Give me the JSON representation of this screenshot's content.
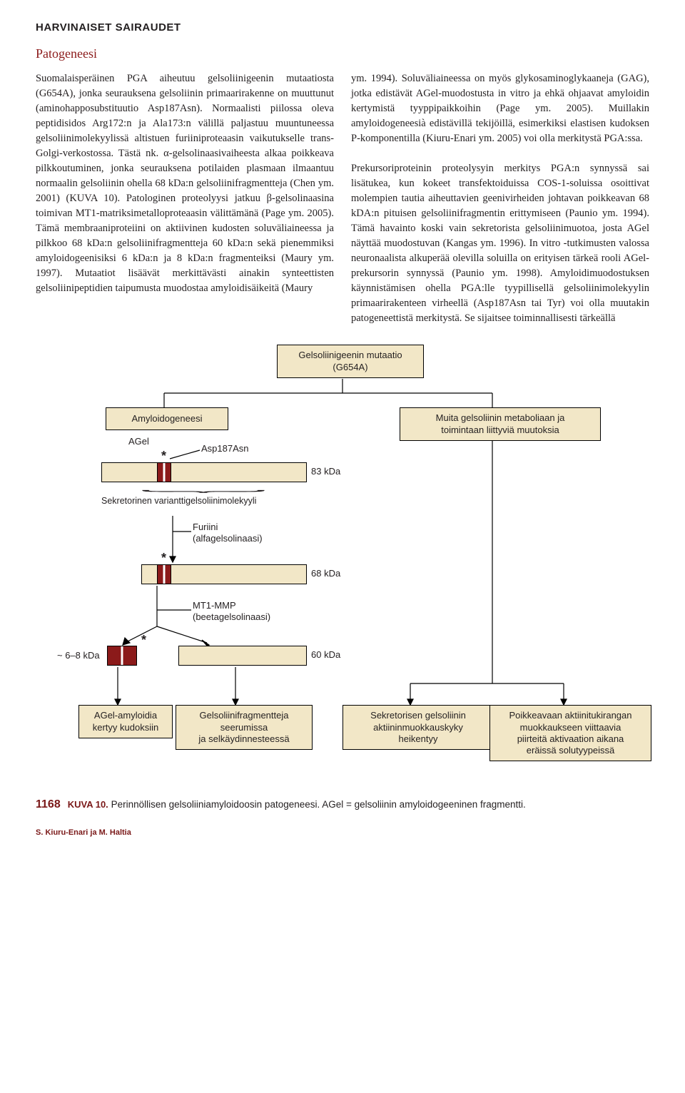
{
  "header": {
    "section": "HARVINAISET SAIRAUDET"
  },
  "subheading": "Patogeneesi",
  "paragraphs": {
    "left": "Suomalaisperäinen PGA aiheutuu gelsoliinigeenin mutaatiosta (G654A), jonka seurauksena gelsoliinin primaarirakenne on muuttunut (aminohapposubstituutio Asp187Asn). Normaalisti piilossa oleva peptidisidos Arg172:n ja Ala173:n välillä paljastuu muuntuneessa gelsoliinimolekyylissä altistuen furiiniproteaasin vaikutukselle trans-Golgi-verkostossa. Tästä nk. α-gelsolinaasivaiheesta alkaa poikkeava pilkkoutuminen, jonka seurauksena potilaiden plasmaan ilmaantuu normaalin gelsoliinin ohella 68 kDa:n gelsoliinifragmentteja (Chen ym. 2001) (KUVA 10). Patologinen proteolyysi jatkuu β-gelsolinaasina toimivan MT1-matriksimetalloproteaasin välittämänä (Page ym. 2005). Tämä membraaniproteiini on aktiivinen kudosten soluväliaineessa ja pilkkoo 68 kDa:n gelsoliinifragmentteja 60 kDa:n sekä pienemmiksi amyloidogeenisiksi 6 kDa:n ja 8 kDa:n fragmenteiksi (Maury ym. 1997). Mutaatiot lisäävät merkittävästi ainakin synteettisten gelsoliinipeptidien taipumusta muodostaa amyloidisäikeitä (Maury",
    "right": "ym. 1994). Soluväliaineessa on myös glykosaminoglykaaneja (GAG), jotka edistävät AGel-muodostusta in vitro ja ehkä ohjaavat amyloidin kertymistä tyyppipaikkoihin (Page ym. 2005). Muillakin amyloidogeneesià edistävillä tekijöillä, esimerkiksi elastisen kudoksen P-komponentilla (Kiuru-Enari ym. 2005) voi olla merkitystä PGA:ssa.\n\nPrekursoriproteinin proteolysyin merkitys PGA:n synnyssä sai lisätukea, kun kokeet transfektoiduissa COS-1-soluissa osoittivat molempien tautia aiheuttavien geenivirheiden johtavan poikkeavan 68 kDA:n pituisen gelsoliinifragmentin erittymiseen (Paunio ym. 1994). Tämä havainto koski vain sekretorista gelsoliinimuotoa, josta AGel näyttää muodostuvan (Kangas ym. 1996). In vitro -tutkimusten valossa neuronaalista alkuperää olevilla soluilla on erityisen tärkeä rooli AGel-prekursorin synnyssä (Paunio ym. 1998). Amyloidimuodostuksen käynnistämisen ohella PGA:lle tyypillisellä gelsoliinimolekyylin primaarirakenteen virheellä (Asp187Asn tai Tyr) voi olla muutakin patogeneettistä merkitystä. Se sijaitsee toiminnallisesti tärkeällä"
  },
  "figure": {
    "top_box": "Gelsoliinigeenin mutaatio\n(G654A)",
    "amyloidogenesis_box": "Amyloidogeneesi",
    "other_changes_box": "Muita gelsoliinin metaboliaan ja\ntoimintaan liittyviä muutoksia",
    "agel_label": "AGel",
    "mutation_label": "Asp187Asn",
    "secretory_label": "Sekretorinen varianttigelsoliinimolekyyli",
    "furin_label": "Furiini\n(alfagelsolinaasi)",
    "mt1_label": "MT1-MMP\n(beetagelsolinaasi)",
    "frag_small": "~ 6–8 kDa",
    "size_83": "83 kDa",
    "size_68": "68 kDa",
    "size_60": "60 kDa",
    "bottom_box_1": "AGel-amyloidia\nkertyy kudoksiin",
    "bottom_box_2": "Gelsoliinifragmentteja\nseerumissa\nja selkäydinnesteessä",
    "bottom_box_3": "Sekretorisen gelsoliinin\naktiininmuokkauskyky\nheikentyy",
    "bottom_box_4": "Poikkeavaan aktiinitukirangan\nmuokkaukseen viittaavia\npiirteitä aktivaation aikana\neräissä solutyypeissä",
    "colors": {
      "light_fill": "#f2e7c7",
      "marker_fill": "#8b1a1a",
      "line": "#000000"
    }
  },
  "caption": {
    "page_number": "1168",
    "label": "KUVA 10.",
    "text": "Perinnöllisen gelsoliiniamyloidoosin patogeneesi. AGel = gelsoliinin amyloidogeeninen fragmentti."
  },
  "footer": "S. Kiuru-Enari ja M. Haltia"
}
